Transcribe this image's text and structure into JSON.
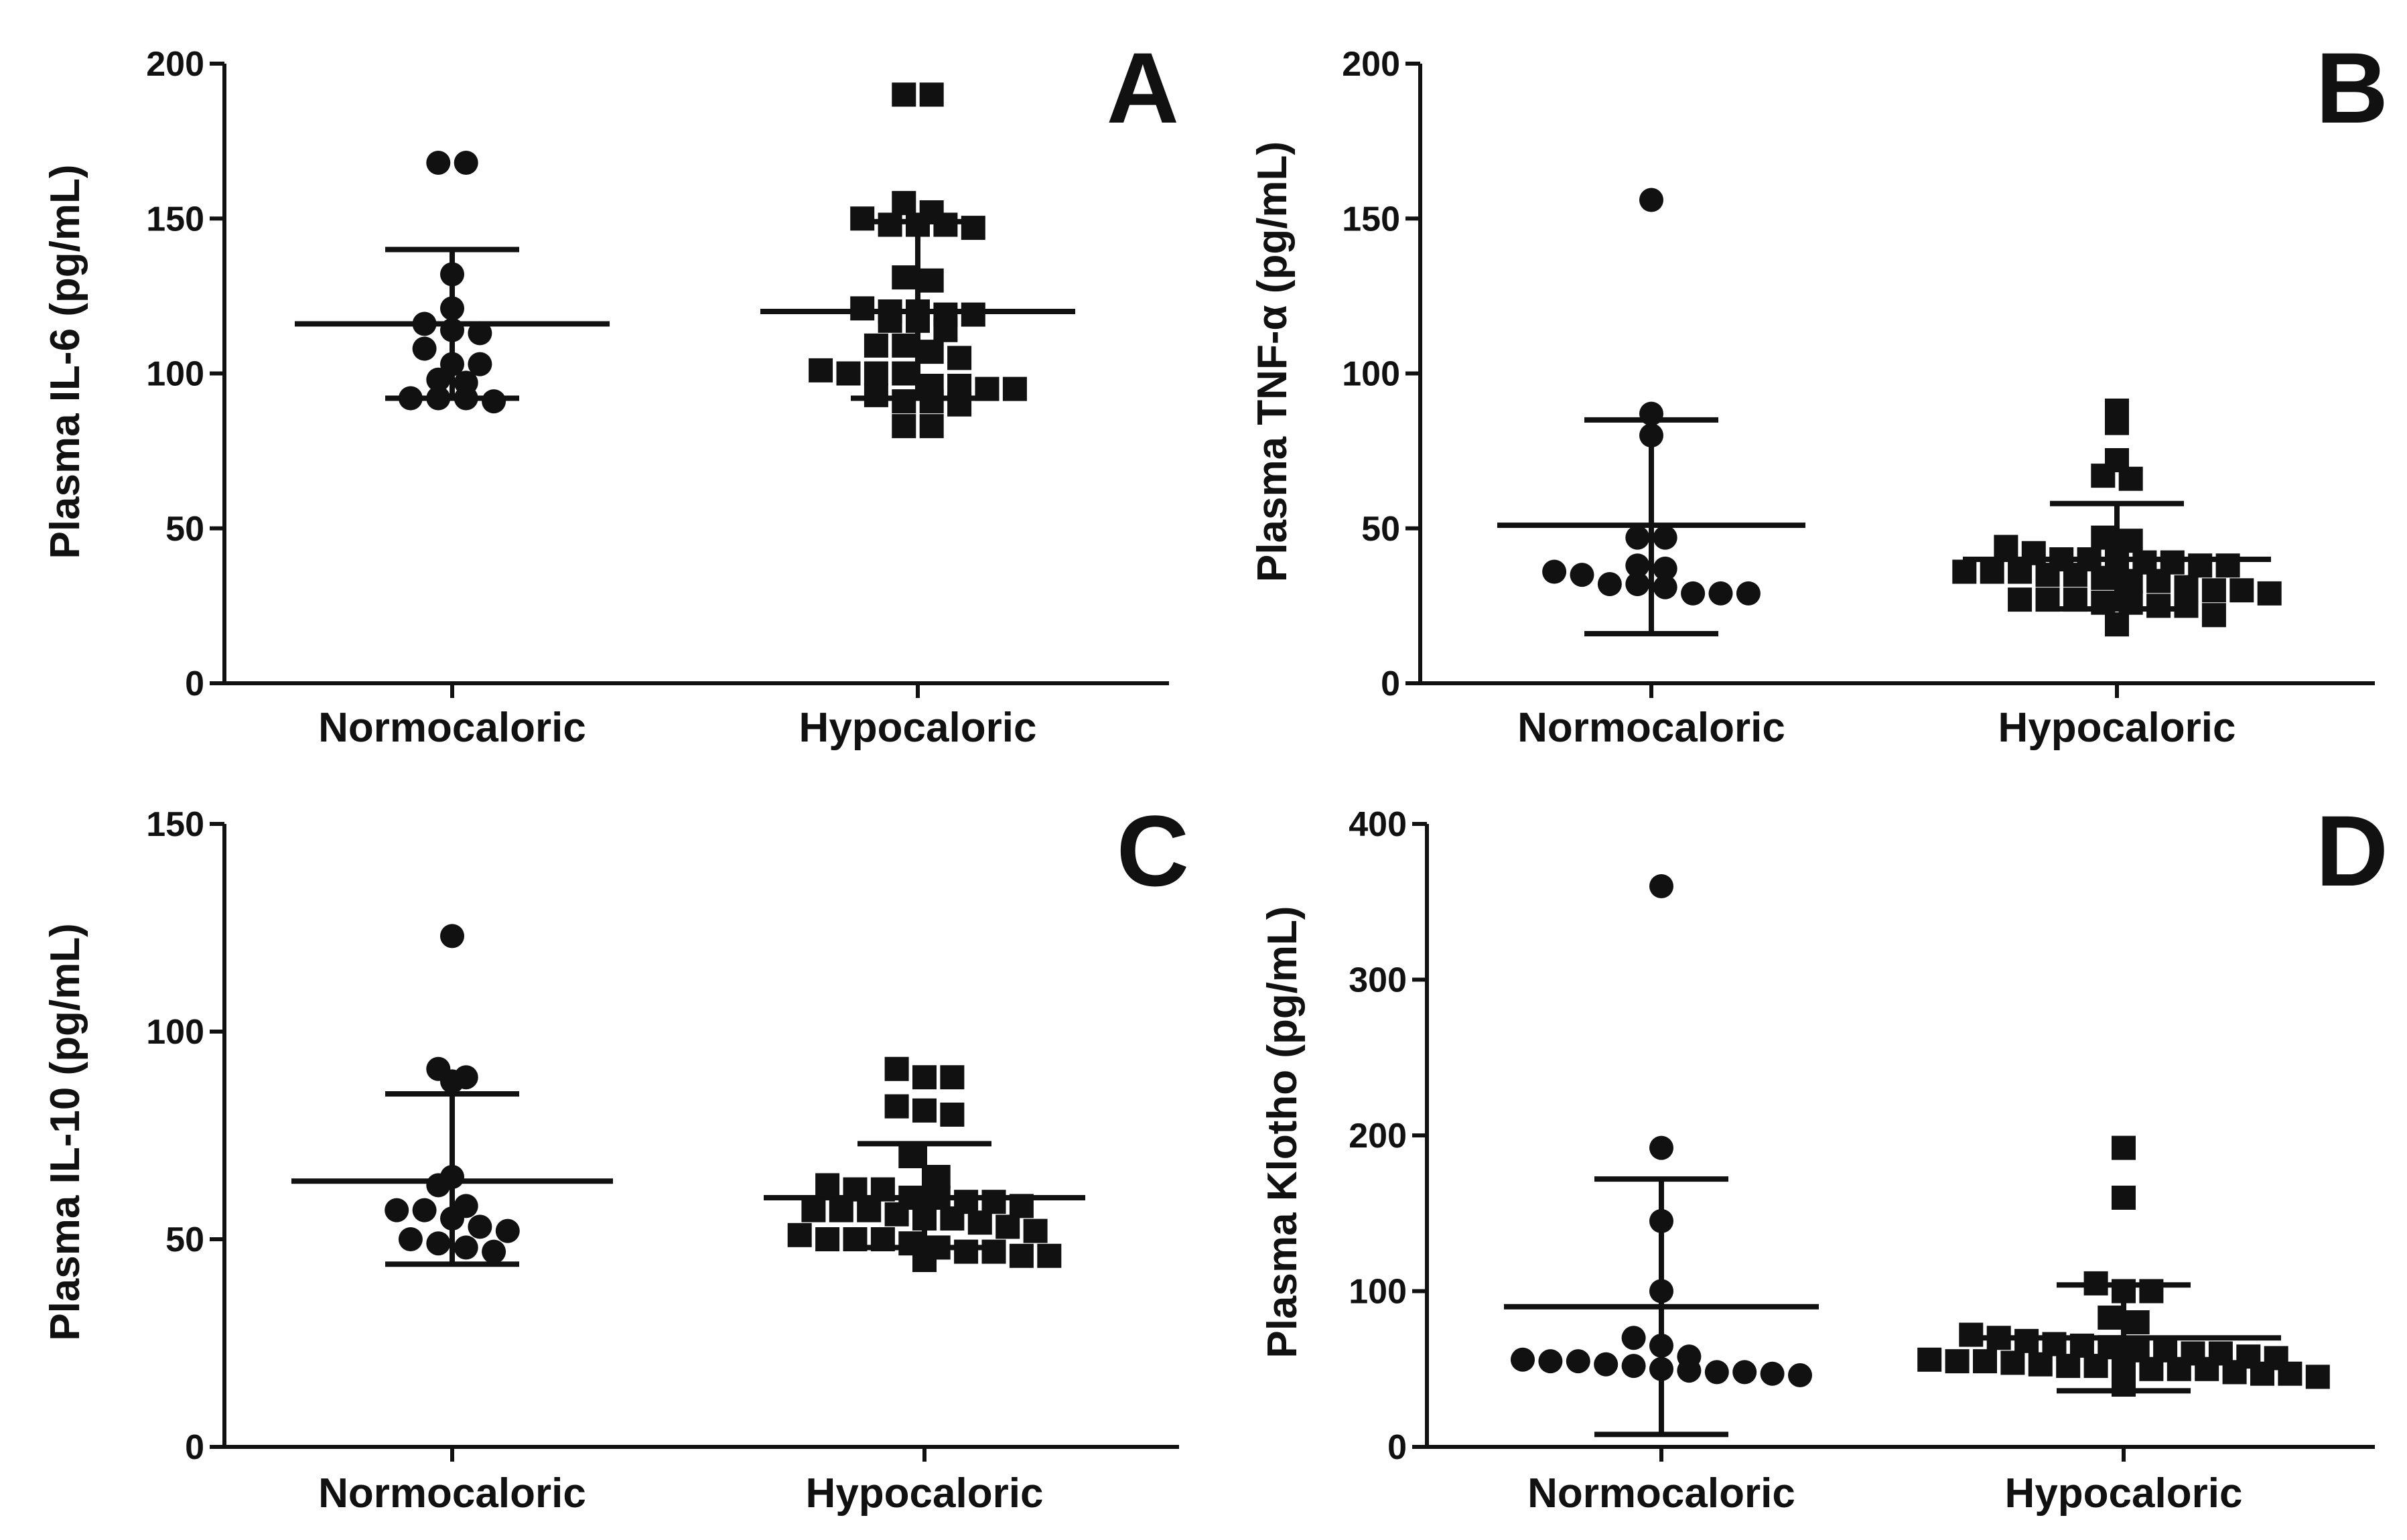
{
  "chart_data": [
    {
      "type": "scatter",
      "panel": "A",
      "ylabel": "Plasma IL-6 (pg/mL)",
      "ylim": [
        0,
        200
      ],
      "yticks": [
        0,
        50,
        100,
        150,
        200
      ],
      "categories": [
        "Normocaloric",
        "Hypocaloric"
      ],
      "series": [
        {
          "name": "Normocaloric",
          "marker": "circle",
          "values": [
            168,
            168,
            132,
            121,
            116,
            114,
            113,
            108,
            103,
            103,
            98,
            97,
            92,
            92,
            92,
            91
          ],
          "mean": 116,
          "sd_low": 92,
          "sd_high": 140
        },
        {
          "name": "Hypocaloric",
          "marker": "square",
          "values": [
            190,
            190,
            155,
            152,
            150,
            148,
            148,
            148,
            147,
            131,
            130,
            121,
            120,
            120,
            119,
            119,
            117,
            117,
            114,
            109,
            109,
            107,
            105,
            101,
            100,
            100,
            100,
            96,
            96,
            95,
            95,
            93,
            91,
            91,
            90,
            83,
            83
          ],
          "mean": 120,
          "sd_low": 92,
          "sd_high": 149
        }
      ]
    },
    {
      "type": "scatter",
      "panel": "B",
      "ylabel": "Plasma TNF-α (pg/mL)",
      "ylim": [
        0,
        200
      ],
      "yticks": [
        0,
        50,
        100,
        150,
        200
      ],
      "categories": [
        "Normocaloric",
        "Hypocaloric"
      ],
      "series": [
        {
          "name": "Normocaloric",
          "marker": "circle",
          "values": [
            156,
            87,
            80,
            47,
            47,
            38,
            37,
            36,
            35,
            32,
            32,
            31,
            29,
            29,
            29
          ],
          "mean": 51,
          "sd_low": 16,
          "sd_high": 85
        },
        {
          "name": "Hypocaloric",
          "marker": "square",
          "values": [
            88,
            84,
            72,
            67,
            66,
            47,
            46,
            44,
            42,
            40,
            40,
            40,
            39,
            39,
            38,
            38,
            36,
            36,
            36,
            35,
            35,
            34,
            33,
            33,
            31,
            30,
            30,
            29,
            27,
            27,
            27,
            26,
            26,
            25,
            25,
            22,
            19
          ],
          "mean": 40,
          "sd_low": 24,
          "sd_high": 58
        }
      ]
    },
    {
      "type": "scatter",
      "panel": "C",
      "ylabel": "Plasma IL-10 (pg/mL)",
      "ylim": [
        0,
        150
      ],
      "yticks": [
        0,
        50,
        100,
        150
      ],
      "categories": [
        "Normocaloric",
        "Hypocaloric"
      ],
      "series": [
        {
          "name": "Normocaloric",
          "marker": "circle",
          "values": [
            123,
            91,
            89,
            88,
            65,
            63,
            58,
            57,
            57,
            55,
            53,
            52,
            50,
            49,
            48,
            47
          ],
          "mean": 64,
          "sd_low": 44,
          "sd_high": 85
        },
        {
          "name": "Hypocaloric",
          "marker": "square",
          "values": [
            91,
            89,
            89,
            82,
            81,
            80,
            70,
            65,
            63,
            62,
            62,
            60,
            60,
            59,
            59,
            58,
            57,
            57,
            57,
            56,
            55,
            55,
            54,
            53,
            52,
            51,
            50,
            50,
            50,
            49,
            48,
            47,
            47,
            46,
            46,
            45
          ],
          "mean": 60,
          "sd_low": 48,
          "sd_high": 73
        }
      ]
    },
    {
      "type": "scatter",
      "panel": "D",
      "ylabel": "Plasma Klotho (pg/mL)",
      "ylim": [
        0,
        400
      ],
      "yticks": [
        0,
        100,
        200,
        300,
        400
      ],
      "categories": [
        "Normocaloric",
        "Hypocaloric"
      ],
      "series": [
        {
          "name": "Normocaloric",
          "marker": "circle",
          "values": [
            360,
            192,
            145,
            100,
            70,
            65,
            58,
            56,
            55,
            55,
            53,
            52,
            50,
            49,
            48,
            48,
            47,
            46
          ],
          "mean": 90,
          "sd_low": 8,
          "sd_high": 172
        },
        {
          "name": "Hypocaloric",
          "marker": "square",
          "values": [
            192,
            160,
            105,
            100,
            100,
            83,
            80,
            72,
            70,
            68,
            66,
            65,
            64,
            62,
            62,
            60,
            60,
            58,
            57,
            56,
            55,
            55,
            54,
            53,
            52,
            52,
            50,
            50,
            50,
            50,
            48,
            47,
            47,
            45,
            40
          ],
          "mean": 70,
          "sd_low": 36,
          "sd_high": 104
        }
      ]
    }
  ]
}
